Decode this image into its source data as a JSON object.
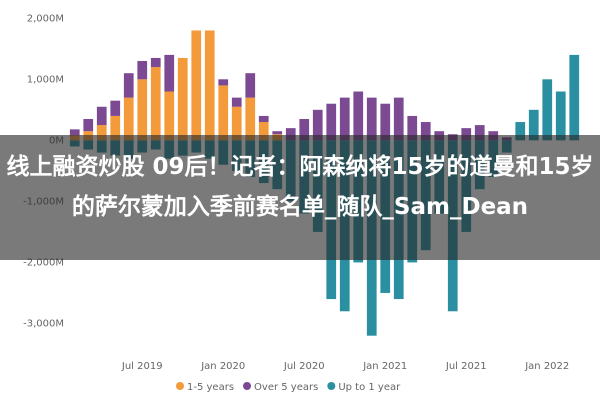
{
  "chart_data": {
    "type": "bar",
    "categories": [
      null,
      null,
      null,
      null,
      null,
      "Jul 2019",
      null,
      null,
      null,
      null,
      null,
      "Jan 2020",
      null,
      null,
      null,
      null,
      null,
      "Jul 2020",
      null,
      null,
      null,
      null,
      null,
      "Jan 2021",
      null,
      null,
      null,
      null,
      null,
      "Jul 2021",
      null,
      null,
      null,
      null,
      null,
      "Jan 2022",
      null,
      null
    ],
    "series": [
      {
        "name": "1-5 years",
        "color": "#f39a3b",
        "values": [
          80,
          150,
          250,
          400,
          700,
          1000,
          1200,
          800,
          1350,
          1800,
          1800,
          900,
          550,
          700,
          300,
          100,
          0,
          0,
          0,
          0,
          0,
          0,
          0,
          0,
          0,
          0,
          0,
          0,
          0,
          0,
          0,
          0,
          0,
          0,
          0,
          0,
          0,
          0
        ]
      },
      {
        "name": "Over 5 years",
        "color": "#7b4a93",
        "values": [
          100,
          200,
          300,
          250,
          400,
          300,
          150,
          600,
          0,
          0,
          0,
          100,
          150,
          400,
          100,
          50,
          200,
          350,
          500,
          600,
          700,
          800,
          700,
          600,
          700,
          400,
          300,
          150,
          100,
          200,
          250,
          150,
          50,
          0,
          0,
          0,
          0,
          0
        ]
      },
      {
        "name": "Up to 1 year",
        "color": "#2a8fa0",
        "values": [
          -100,
          -150,
          -200,
          -250,
          -300,
          -200,
          -150,
          -300,
          -250,
          -200,
          -300,
          -400,
          -500,
          -600,
          -700,
          -800,
          -1000,
          -1200,
          -1500,
          -2600,
          -2800,
          -2000,
          -3200,
          -2500,
          -2600,
          -2000,
          -1800,
          -1200,
          -2800,
          -1500,
          -800,
          -600,
          -200,
          300,
          500,
          1000,
          800,
          1400
        ]
      }
    ],
    "ylim": [
      -3500,
      2250
    ],
    "yticks": [
      {
        "value": 2000,
        "label": "2,000M"
      },
      {
        "value": 1000,
        "label": "1,000M"
      },
      {
        "value": 0,
        "label": "0M"
      },
      {
        "value": -1000,
        "label": "-1,000M"
      },
      {
        "value": -2000,
        "label": "-2,000M"
      },
      {
        "value": -3000,
        "label": "-3,000M"
      }
    ],
    "grid": false
  },
  "caption": "线上融资炒股 09后！记者：阿森纳将15岁的道曼和15岁的萨尔蒙加入季前赛名单_随队_Sam_Dean"
}
